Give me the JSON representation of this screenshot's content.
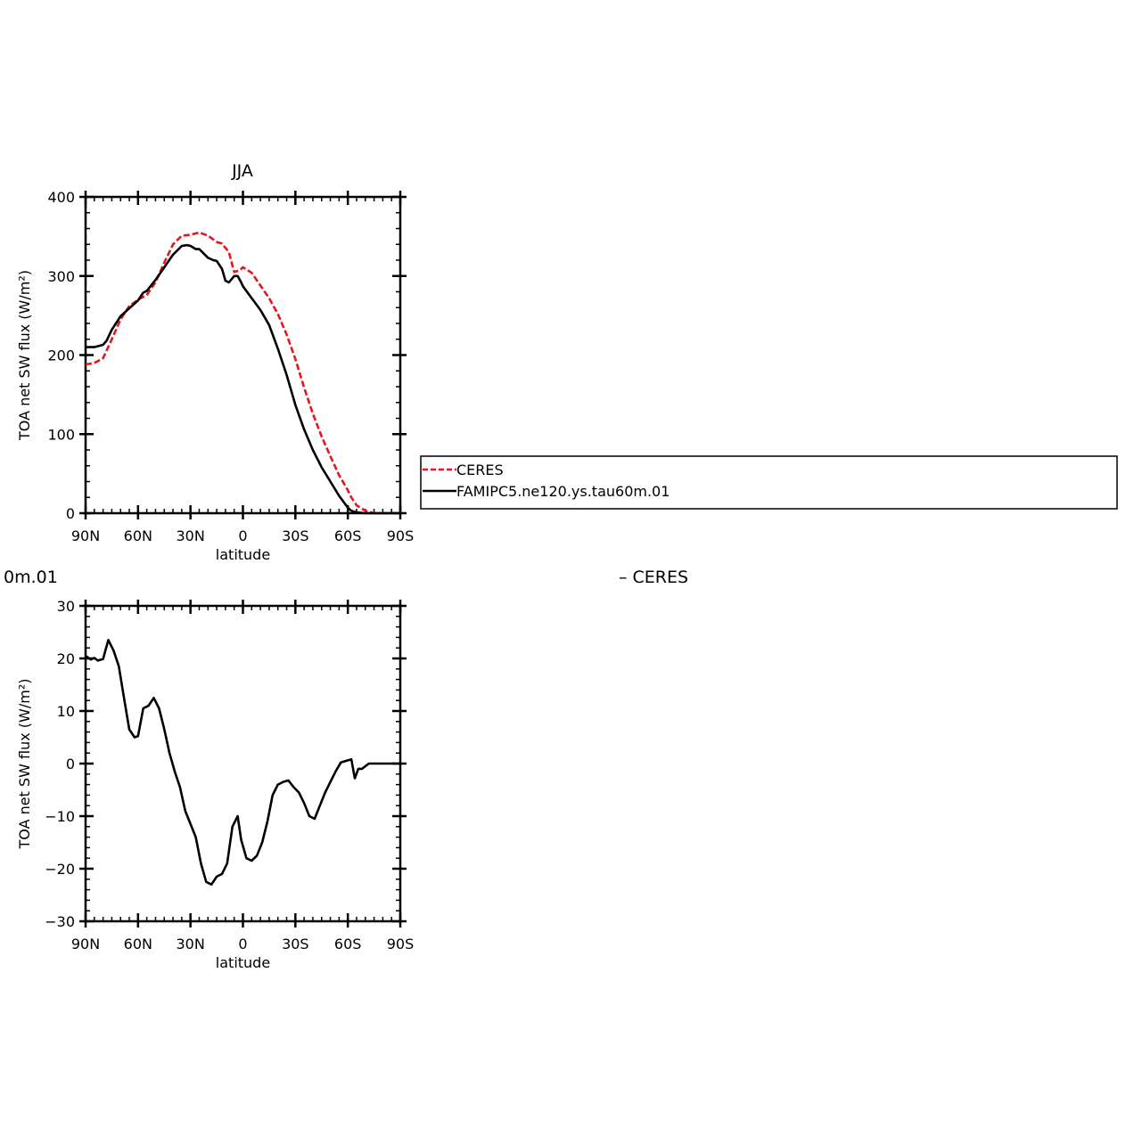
{
  "panels": {
    "top_title": "JJA",
    "bottom_title_left": "0m.01",
    "bottom_title_right": "–  CERES"
  },
  "legend": {
    "entries": [
      {
        "label": "CERES",
        "color": "#e8161b",
        "dash": true
      },
      {
        "label": "FAMIPC5.ne120.ys.tau60m.01",
        "color": "#000000",
        "dash": false
      }
    ]
  },
  "colors": {
    "ceres": "#e8161b",
    "model": "#000000",
    "axes": "#000000"
  },
  "chart_data": [
    {
      "type": "line",
      "title": "JJA",
      "xlabel": "latitude",
      "ylabel": "TOA net SW flux (W/m²)",
      "xlim": [
        -90,
        90
      ],
      "ylim": [
        0,
        400
      ],
      "xticks": [
        -90,
        -60,
        -30,
        0,
        30,
        60,
        90
      ],
      "xticklabels": [
        "90N",
        "60N",
        "30N",
        "0",
        "30S",
        "60S",
        "90S"
      ],
      "yticks": [
        0,
        100,
        200,
        300,
        400
      ],
      "yticklabels": [
        "0",
        "100",
        "200",
        "300",
        "400"
      ],
      "series": [
        {
          "name": "CERES",
          "x": [
            -90,
            -85,
            -80,
            -75,
            -70,
            -65,
            -60,
            -55,
            -50,
            -45,
            -40,
            -35,
            -30,
            -25,
            -20,
            -15,
            -12,
            -8,
            -5,
            -2,
            0,
            5,
            10,
            15,
            20,
            25,
            30,
            35,
            40,
            45,
            50,
            55,
            60,
            62,
            65,
            70,
            75,
            80,
            85,
            90
          ],
          "y": [
            188,
            190,
            196,
            220,
            245,
            262,
            270,
            276,
            292,
            317,
            340,
            351,
            352,
            355,
            351,
            343,
            341,
            330,
            305,
            307,
            311,
            304,
            288,
            272,
            252,
            226,
            195,
            159,
            126,
            97,
            72,
            48,
            29,
            20,
            10,
            3,
            0,
            0,
            0,
            0
          ]
        },
        {
          "name": "FAMIPC5.ne120.ys.tau60m.01",
          "x": [
            -90,
            -85,
            -80,
            -78,
            -75,
            -70,
            -65,
            -60,
            -57,
            -55,
            -50,
            -45,
            -40,
            -35,
            -32,
            -30,
            -27,
            -25,
            -20,
            -17,
            -15,
            -12,
            -10,
            -8,
            -5,
            -3,
            -1,
            0,
            5,
            10,
            15,
            20,
            25,
            30,
            35,
            40,
            45,
            50,
            55,
            60,
            62,
            65,
            70,
            75,
            80,
            85,
            90
          ],
          "y": [
            210,
            210,
            213,
            218,
            232,
            249,
            259,
            269,
            279,
            281,
            295,
            311,
            327,
            338,
            339,
            338,
            334,
            334,
            323,
            320,
            319,
            309,
            294,
            292,
            300,
            300,
            292,
            287,
            272,
            257,
            238,
            208,
            175,
            137,
            106,
            80,
            58,
            40,
            22,
            7,
            3,
            1,
            0,
            0,
            0,
            0,
            0
          ]
        }
      ]
    },
    {
      "type": "line",
      "xlabel": "latitude",
      "ylabel": "TOA net SW flux (W/m²)",
      "xlim": [
        -90,
        90
      ],
      "ylim": [
        -30,
        30
      ],
      "xticks": [
        -90,
        -60,
        -30,
        0,
        30,
        60,
        90
      ],
      "xticklabels": [
        "90N",
        "60N",
        "30N",
        "0",
        "30S",
        "60S",
        "90S"
      ],
      "yticks": [
        -30,
        -20,
        -10,
        0,
        10,
        20,
        30
      ],
      "yticklabels": [
        "−30",
        "−20",
        "−10",
        "0",
        "10",
        "20",
        "30"
      ],
      "series": [
        {
          "x": [
            -90,
            -87,
            -85,
            -83,
            -80,
            -77,
            -74,
            -71,
            -68,
            -65,
            -62,
            -60,
            -57,
            -54,
            -51,
            -48,
            -45,
            -42,
            -39,
            -36,
            -33,
            -30,
            -27,
            -24,
            -21,
            -18,
            -15,
            -12,
            -9,
            -6,
            -3,
            -1,
            2,
            5,
            8,
            11,
            14,
            17,
            20,
            23,
            26,
            29,
            32,
            35,
            38,
            41,
            44,
            47,
            50,
            53,
            56,
            59,
            62,
            64,
            66,
            68,
            70,
            72,
            75,
            78,
            81,
            84,
            87,
            90
          ],
          "y": [
            20.5,
            19.8,
            20.1,
            19.6,
            19.9,
            23.5,
            21.5,
            18.5,
            12.5,
            6.5,
            5.0,
            5.2,
            10.5,
            11.0,
            12.5,
            10.5,
            6.5,
            2.0,
            -1.5,
            -4.5,
            -9.0,
            -11.5,
            -14.0,
            -19.0,
            -22.5,
            -23.0,
            -21.5,
            -21.0,
            -19.0,
            -12.0,
            -10.0,
            -14.5,
            -18.0,
            -18.5,
            -17.5,
            -15.0,
            -11.0,
            -6.0,
            -4.0,
            -3.5,
            -3.2,
            -4.5,
            -5.5,
            -7.5,
            -10.0,
            -10.5,
            -8.0,
            -5.5,
            -3.5,
            -1.5,
            0.2,
            0.5,
            0.8,
            -2.8,
            -1.0,
            -1.0,
            -0.5,
            0.0,
            0.0,
            0.0,
            0.0,
            0.0,
            0.0,
            0.0
          ]
        }
      ]
    }
  ]
}
